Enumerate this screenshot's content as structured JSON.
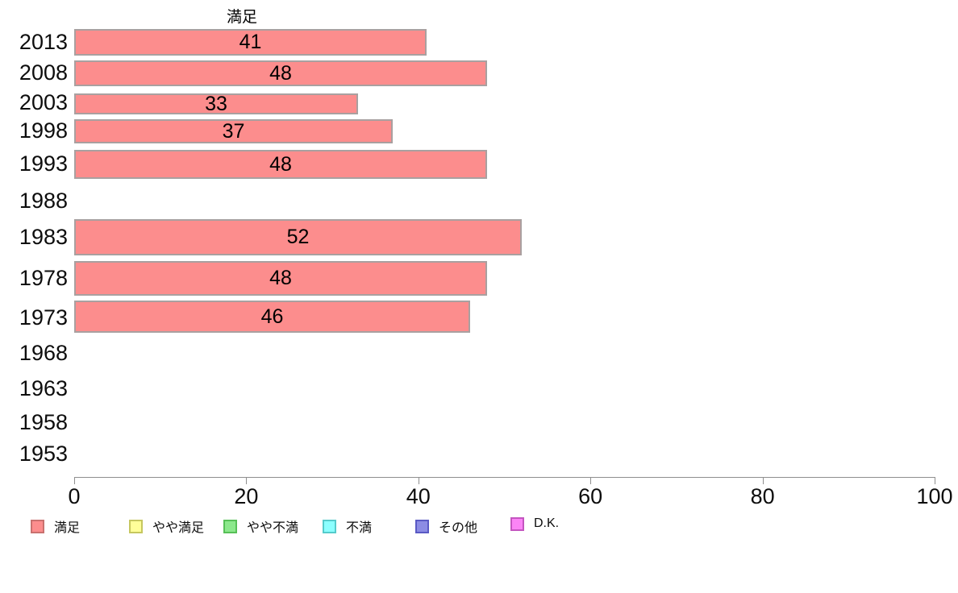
{
  "chart_data": {
    "type": "bar",
    "orientation": "horizontal",
    "title": "満足",
    "categories": [
      "2013",
      "2008",
      "2003",
      "1998",
      "1993",
      "1988",
      "1983",
      "1978",
      "1973",
      "1968",
      "1963",
      "1958",
      "1953"
    ],
    "series": [
      {
        "name": "満足",
        "values": [
          41,
          48,
          33,
          37,
          48,
          null,
          52,
          48,
          46,
          null,
          null,
          null,
          null
        ]
      }
    ],
    "value_labels_shown": true,
    "xlabel": "",
    "ylabel": "",
    "xlim": [
      0,
      100
    ],
    "x_ticks": [
      0,
      20,
      40,
      60,
      80,
      100
    ],
    "grid": false,
    "bar_fill": "#fc8d8d",
    "bar_border": "#a9a0a0",
    "axis_color": "#8f8f8f",
    "legend_position": "bottom",
    "legend": [
      {
        "label": "満足",
        "fill": "#fc8d8d",
        "border": "#c9716f"
      },
      {
        "label": "やや満足",
        "fill": "#ffff99",
        "border": "#c6c75f"
      },
      {
        "label": "やや不満",
        "fill": "#8ce88c",
        "border": "#57c057"
      },
      {
        "label": "不満",
        "fill": "#8cffff",
        "border": "#55cbcb"
      },
      {
        "label": "その他",
        "fill": "#8c8ce4",
        "border": "#5a5ac4"
      },
      {
        "label": "D.K.",
        "fill": "#fb84f6",
        "border": "#c455c0"
      }
    ]
  }
}
